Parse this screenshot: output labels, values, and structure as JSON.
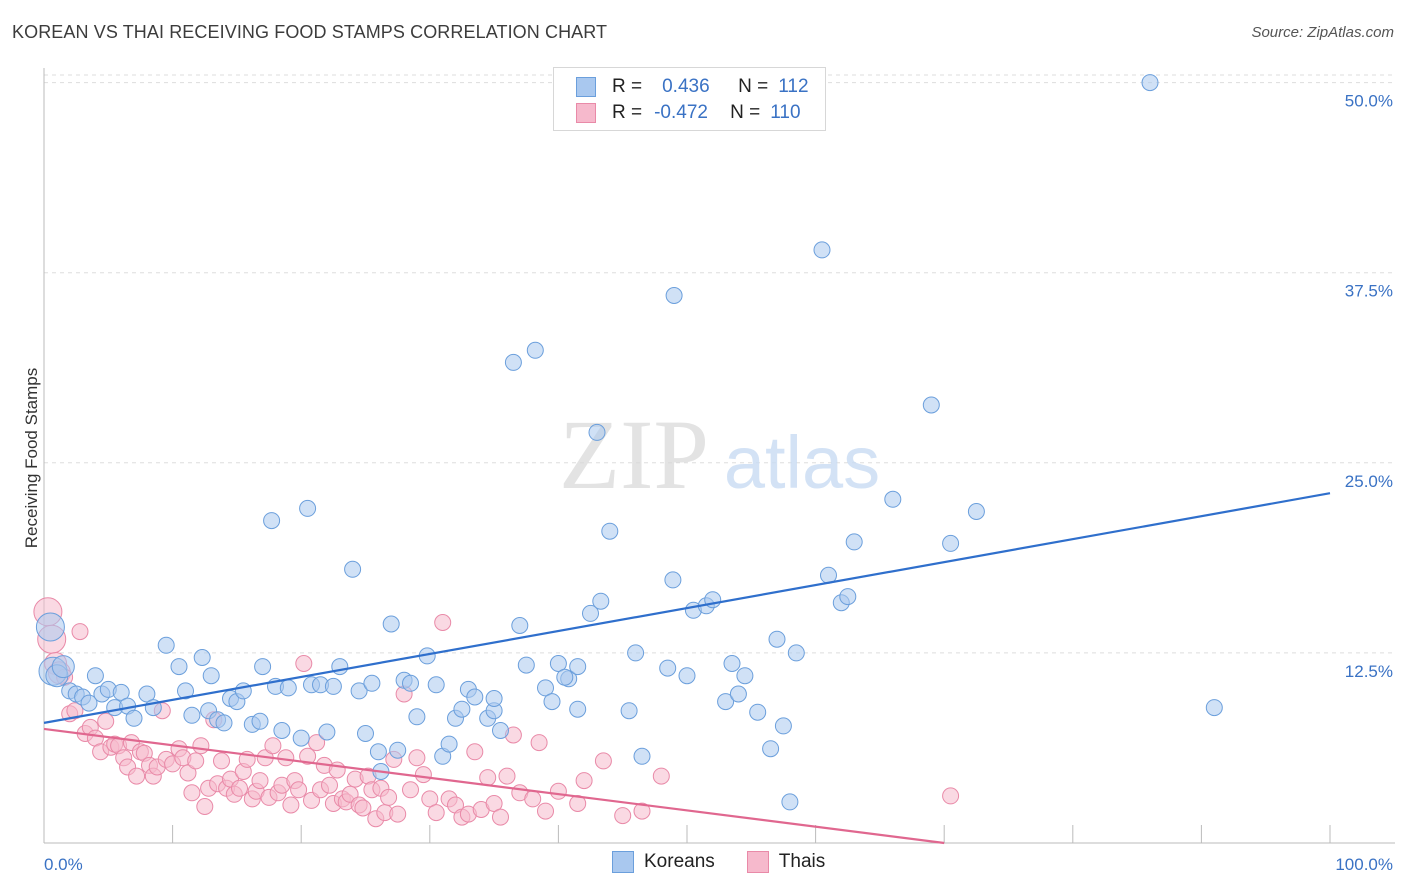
{
  "title": "KOREAN VS THAI RECEIVING FOOD STAMPS CORRELATION CHART",
  "source": "Source: ZipAtlas.com",
  "watermark": {
    "zip": "ZIP",
    "atlas": "atlas"
  },
  "legend": {
    "rows": [
      {
        "r_label": "R =",
        "r_value": "0.436",
        "n_label": "N =",
        "n_value": "112"
      },
      {
        "r_label": "R =",
        "r_value": "-0.472",
        "n_label": "N =",
        "n_value": "110"
      }
    ]
  },
  "colors": {
    "koreans_fill": "#a9c8ef",
    "koreans_stroke": "#6b9fdc",
    "koreans_line": "#2f6fcc",
    "thais_fill": "#f6b9cc",
    "thais_stroke": "#e98aa8",
    "thais_line": "#e0678f",
    "axis_text": "#3a72c4",
    "grid": "#dddddd"
  },
  "chart_data": {
    "type": "scatter",
    "title": "KOREAN VS THAI RECEIVING FOOD STAMPS CORRELATION CHART",
    "xlabel": "",
    "ylabel": "Receiving Food Stamps",
    "xlim": [
      0,
      100
    ],
    "ylim": [
      0,
      50.5
    ],
    "x_tick_labels": [
      "0.0%",
      "100.0%"
    ],
    "y_ticks": [
      12.5,
      25.0,
      37.5,
      50.0
    ],
    "y_tick_labels": [
      "12.5%",
      "25.0%",
      "37.5%",
      "50.0%"
    ],
    "grid": true,
    "legend_position": "bottom-center",
    "series": [
      {
        "name": "Koreans",
        "trend": {
          "x": [
            0,
            100
          ],
          "y": [
            7.9,
            23.0
          ]
        },
        "points": [
          [
            0.5,
            14.2
          ],
          [
            0.7,
            11.3
          ],
          [
            1.0,
            11.0
          ],
          [
            1.5,
            11.6
          ],
          [
            2.0,
            10.0
          ],
          [
            2.5,
            9.8
          ],
          [
            3.0,
            9.6
          ],
          [
            3.5,
            9.2
          ],
          [
            4.0,
            11.0
          ],
          [
            4.5,
            9.8
          ],
          [
            5.0,
            10.1
          ],
          [
            5.5,
            8.9
          ],
          [
            6.0,
            9.9
          ],
          [
            6.5,
            9.0
          ],
          [
            7.0,
            8.2
          ],
          [
            8.0,
            9.8
          ],
          [
            8.5,
            8.9
          ],
          [
            9.5,
            13.0
          ],
          [
            10.5,
            11.6
          ],
          [
            11.0,
            10.0
          ],
          [
            11.5,
            8.4
          ],
          [
            12.3,
            12.2
          ],
          [
            12.8,
            8.7
          ],
          [
            13.0,
            11.0
          ],
          [
            13.5,
            8.1
          ],
          [
            14.0,
            7.9
          ],
          [
            14.5,
            9.5
          ],
          [
            15.0,
            9.3
          ],
          [
            15.5,
            10.0
          ],
          [
            16.2,
            7.8
          ],
          [
            16.8,
            8.0
          ],
          [
            17.0,
            11.6
          ],
          [
            17.7,
            21.2
          ],
          [
            18.0,
            10.3
          ],
          [
            18.5,
            7.4
          ],
          [
            19.0,
            10.2
          ],
          [
            20.0,
            6.9
          ],
          [
            20.5,
            22.0
          ],
          [
            20.8,
            10.4
          ],
          [
            21.5,
            10.4
          ],
          [
            22.0,
            7.3
          ],
          [
            22.5,
            10.3
          ],
          [
            23.0,
            11.6
          ],
          [
            24.0,
            18.0
          ],
          [
            24.5,
            10.0
          ],
          [
            25.0,
            7.2
          ],
          [
            25.5,
            10.5
          ],
          [
            26.0,
            6.0
          ],
          [
            26.2,
            4.7
          ],
          [
            27.0,
            14.4
          ],
          [
            27.5,
            6.1
          ],
          [
            28.0,
            10.7
          ],
          [
            28.5,
            10.5
          ],
          [
            29.0,
            8.3
          ],
          [
            29.8,
            12.3
          ],
          [
            30.5,
            10.4
          ],
          [
            31.0,
            5.7
          ],
          [
            31.5,
            6.5
          ],
          [
            32.0,
            8.2
          ],
          [
            32.5,
            8.8
          ],
          [
            33.0,
            10.1
          ],
          [
            33.5,
            9.6
          ],
          [
            34.5,
            8.2
          ],
          [
            35.0,
            8.7
          ],
          [
            35.5,
            7.4
          ],
          [
            35.0,
            9.5
          ],
          [
            36.5,
            31.6
          ],
          [
            37.0,
            14.3
          ],
          [
            37.5,
            11.7
          ],
          [
            38.2,
            32.4
          ],
          [
            39.0,
            10.2
          ],
          [
            39.5,
            9.3
          ],
          [
            40.0,
            11.8
          ],
          [
            40.8,
            10.8
          ],
          [
            41.5,
            11.6
          ],
          [
            41.5,
            8.8
          ],
          [
            42.5,
            15.1
          ],
          [
            40.5,
            10.9
          ],
          [
            43.0,
            27.0
          ],
          [
            43.3,
            15.9
          ],
          [
            44.0,
            20.5
          ],
          [
            45.5,
            8.7
          ],
          [
            46.0,
            12.5
          ],
          [
            46.5,
            5.7
          ],
          [
            48.5,
            11.5
          ],
          [
            48.9,
            17.3
          ],
          [
            49.0,
            36.0
          ],
          [
            50.0,
            11.0
          ],
          [
            50.5,
            15.3
          ],
          [
            51.5,
            15.6
          ],
          [
            52.0,
            16.0
          ],
          [
            53.0,
            9.3
          ],
          [
            53.5,
            11.8
          ],
          [
            54.0,
            9.8
          ],
          [
            54.5,
            11.0
          ],
          [
            55.5,
            8.6
          ],
          [
            56.5,
            6.2
          ],
          [
            57.0,
            13.4
          ],
          [
            57.5,
            7.7
          ],
          [
            58.0,
            2.7
          ],
          [
            58.5,
            12.5
          ],
          [
            60.5,
            39.0
          ],
          [
            61.0,
            17.6
          ],
          [
            62.0,
            15.8
          ],
          [
            62.5,
            16.2
          ],
          [
            63.0,
            19.8
          ],
          [
            66.0,
            22.6
          ],
          [
            69.0,
            28.8
          ],
          [
            70.5,
            19.7
          ],
          [
            72.5,
            21.8
          ],
          [
            86.0,
            50.0
          ],
          [
            91.0,
            8.9
          ]
        ]
      },
      {
        "name": "Thais",
        "trend": {
          "x": [
            0,
            70
          ],
          "y": [
            7.5,
            0.0
          ]
        },
        "points": [
          [
            0.3,
            15.2
          ],
          [
            0.6,
            13.4
          ],
          [
            0.9,
            11.8
          ],
          [
            1.2,
            11.2
          ],
          [
            1.6,
            10.9
          ],
          [
            2.0,
            8.5
          ],
          [
            2.4,
            8.7
          ],
          [
            2.8,
            13.9
          ],
          [
            3.2,
            7.2
          ],
          [
            3.6,
            7.6
          ],
          [
            4.0,
            6.9
          ],
          [
            4.4,
            6.0
          ],
          [
            4.8,
            8.0
          ],
          [
            5.2,
            6.3
          ],
          [
            5.5,
            6.5
          ],
          [
            5.8,
            6.4
          ],
          [
            6.2,
            5.6
          ],
          [
            6.5,
            5.0
          ],
          [
            6.8,
            6.6
          ],
          [
            7.2,
            4.4
          ],
          [
            7.5,
            6.0
          ],
          [
            7.8,
            5.9
          ],
          [
            8.2,
            5.1
          ],
          [
            8.5,
            4.4
          ],
          [
            8.8,
            5.0
          ],
          [
            9.2,
            8.7
          ],
          [
            9.5,
            5.5
          ],
          [
            10.0,
            5.2
          ],
          [
            10.5,
            6.2
          ],
          [
            10.8,
            5.6
          ],
          [
            11.2,
            4.6
          ],
          [
            11.5,
            3.3
          ],
          [
            11.8,
            5.4
          ],
          [
            12.2,
            6.4
          ],
          [
            12.5,
            2.4
          ],
          [
            12.8,
            3.6
          ],
          [
            13.2,
            8.1
          ],
          [
            13.5,
            3.9
          ],
          [
            13.8,
            5.4
          ],
          [
            14.2,
            3.6
          ],
          [
            14.5,
            4.2
          ],
          [
            14.8,
            3.2
          ],
          [
            15.2,
            3.6
          ],
          [
            15.5,
            4.7
          ],
          [
            15.8,
            5.5
          ],
          [
            16.2,
            2.9
          ],
          [
            16.5,
            3.4
          ],
          [
            16.8,
            4.1
          ],
          [
            17.2,
            5.6
          ],
          [
            17.5,
            3.0
          ],
          [
            17.8,
            6.4
          ],
          [
            18.2,
            3.3
          ],
          [
            18.5,
            3.8
          ],
          [
            18.8,
            5.6
          ],
          [
            19.2,
            2.5
          ],
          [
            19.5,
            4.1
          ],
          [
            19.8,
            3.5
          ],
          [
            20.2,
            11.8
          ],
          [
            20.5,
            5.7
          ],
          [
            20.8,
            2.8
          ],
          [
            21.2,
            6.6
          ],
          [
            21.5,
            3.5
          ],
          [
            21.8,
            5.1
          ],
          [
            22.2,
            3.8
          ],
          [
            22.5,
            2.6
          ],
          [
            22.8,
            4.8
          ],
          [
            23.2,
            2.9
          ],
          [
            23.5,
            2.7
          ],
          [
            23.8,
            3.2
          ],
          [
            24.2,
            4.2
          ],
          [
            24.5,
            2.5
          ],
          [
            24.8,
            2.3
          ],
          [
            25.2,
            4.4
          ],
          [
            25.5,
            3.5
          ],
          [
            25.8,
            1.6
          ],
          [
            26.2,
            3.6
          ],
          [
            26.5,
            2.0
          ],
          [
            26.8,
            3.0
          ],
          [
            27.2,
            5.5
          ],
          [
            27.5,
            1.9
          ],
          [
            28.0,
            9.8
          ],
          [
            28.5,
            3.5
          ],
          [
            29.0,
            5.6
          ],
          [
            29.5,
            4.5
          ],
          [
            30.0,
            2.9
          ],
          [
            30.5,
            2.0
          ],
          [
            31.0,
            14.5
          ],
          [
            31.5,
            2.9
          ],
          [
            32.0,
            2.5
          ],
          [
            32.5,
            1.7
          ],
          [
            33.0,
            1.9
          ],
          [
            33.5,
            6.0
          ],
          [
            34.0,
            2.2
          ],
          [
            34.5,
            4.3
          ],
          [
            35.0,
            2.6
          ],
          [
            35.5,
            1.7
          ],
          [
            36.0,
            4.4
          ],
          [
            36.5,
            7.1
          ],
          [
            37.0,
            3.3
          ],
          [
            38.0,
            2.9
          ],
          [
            38.5,
            6.6
          ],
          [
            39.0,
            2.1
          ],
          [
            40.0,
            3.4
          ],
          [
            41.5,
            2.6
          ],
          [
            42.0,
            4.1
          ],
          [
            43.5,
            5.4
          ],
          [
            45.0,
            1.8
          ],
          [
            46.5,
            2.1
          ],
          [
            48.0,
            4.4
          ],
          [
            70.5,
            3.1
          ]
        ]
      }
    ]
  }
}
